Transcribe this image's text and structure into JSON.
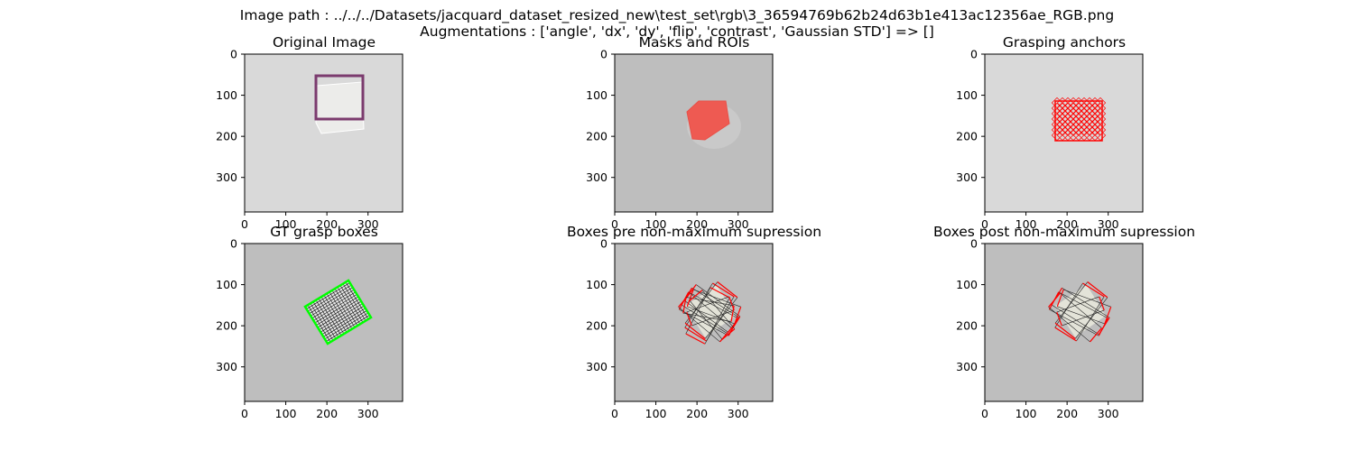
{
  "figure": {
    "line1": "Image path : ../../../Datasets/jacquard_dataset_resized_new\\test_set\\rgb\\3_36594769b62b24d63b1e413ac12356ae_RGB.png",
    "line2": "Augmentations : ['angle', 'dx', 'dy', 'flip', 'contrast', 'Gaussian STD'] => []"
  },
  "panels": [
    {
      "title": "Original Image"
    },
    {
      "title": "Masks and ROIs"
    },
    {
      "title": "Grasping anchors"
    },
    {
      "title": "GT grasp boxes"
    },
    {
      "title": "Boxes pre non-maximum supression"
    },
    {
      "title": "Boxes post non-maximum supression"
    }
  ],
  "axes": {
    "xticks": [
      "0",
      "100",
      "200",
      "300"
    ],
    "yticks": [
      "0",
      "100",
      "200",
      "300"
    ],
    "xlim": [
      0,
      384
    ],
    "ylim": [
      384,
      0
    ]
  },
  "colors": {
    "roi_box": "#7b3b6e",
    "mask": "#ee5a52",
    "anchors": "#ff0000",
    "gt_boxes": "#00ff00",
    "pred_edges": "#ff0000"
  }
}
